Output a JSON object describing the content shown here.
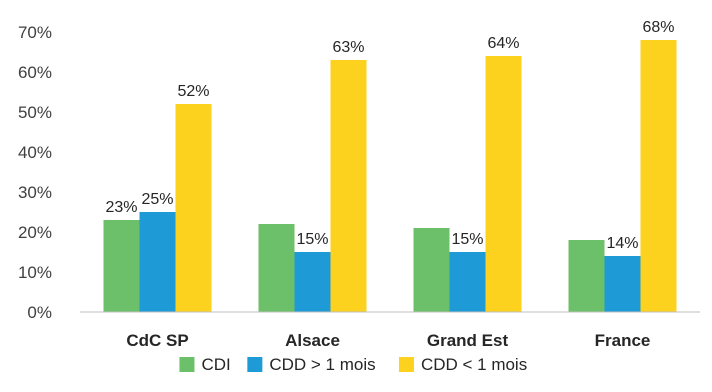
{
  "chart_data": {
    "type": "bar",
    "categories": [
      "CdC SP",
      "Alsace",
      "Grand Est",
      "France"
    ],
    "series": [
      {
        "name": "CDI",
        "values": [
          23,
          22,
          21,
          18
        ],
        "labels": [
          "23%",
          "",
          "",
          ""
        ],
        "color": "#6cc06a"
      },
      {
        "name": "CDD > 1 mois",
        "values": [
          25,
          15,
          15,
          14
        ],
        "labels": [
          "25%",
          "15%",
          "15%",
          "14%"
        ],
        "color": "#1e9ad6"
      },
      {
        "name": "CDD < 1 mois",
        "values": [
          52,
          63,
          64,
          68
        ],
        "labels": [
          "52%",
          "63%",
          "64%",
          "68%"
        ],
        "color": "#fdd21f"
      }
    ],
    "yticks": [
      "0%",
      "10%",
      "20%",
      "30%",
      "40%",
      "50%",
      "60%",
      "70%"
    ],
    "ylim": [
      0,
      70
    ],
    "grid": false,
    "legend": "bottom"
  }
}
